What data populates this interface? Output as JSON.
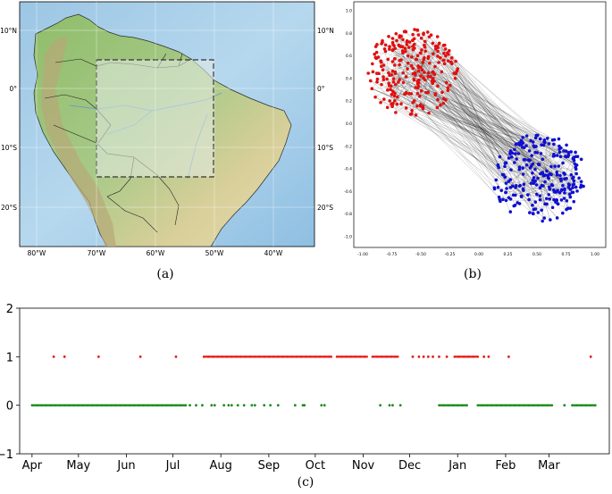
{
  "panels": {
    "a": {
      "caption": "(a)",
      "lat_labels": [
        "10°N",
        "0°",
        "10°S",
        "20°S"
      ],
      "lon_labels": [
        "80°W",
        "70°W",
        "60°W",
        "50°W",
        "40°W"
      ]
    },
    "b": {
      "caption": "(b)",
      "x_ticks": [
        "-1.00",
        "-0.75",
        "-0.50",
        "-0.25",
        "0.00",
        "0.25",
        "0.50",
        "0.75",
        "1.00"
      ],
      "y_ticks": [
        "1.0",
        "0.8",
        "0.6",
        "0.4",
        "0.2",
        "0.0",
        "-0.2",
        "-0.4",
        "-0.6",
        "-0.8",
        "-1.0"
      ],
      "cluster_colors": {
        "cluster_1": "#e01010",
        "cluster_2": "#1010d0"
      }
    },
    "c": {
      "caption": "(c)"
    }
  },
  "chart_data": {
    "type": "scatter",
    "y_ticks": [
      "2",
      "1",
      "0",
      "−1"
    ],
    "ylim": [
      -1,
      2
    ],
    "month_labels": [
      "Apr",
      "May",
      "Jun",
      "Jul",
      "Aug",
      "Sep",
      "Oct",
      "Nov",
      "Dec",
      "Jan",
      "Feb",
      "Mar"
    ],
    "xlim_days": [
      -8,
      373
    ],
    "series": [
      {
        "value": 1,
        "color": "#e8201c",
        "segments": [
          [
            111,
            194
          ],
          [
            197,
            217
          ],
          [
            220,
            237
          ],
          [
            273,
            288
          ]
        ],
        "isolated_days": [
          14,
          21,
          43,
          70,
          93,
          246,
          250,
          253,
          256,
          259,
          263,
          268,
          292,
          295,
          308,
          361
        ]
      },
      {
        "value": 0,
        "color": "#1c8a1c",
        "segments": [
          [
            0,
            100
          ],
          [
            263,
            281
          ],
          [
            288,
            336
          ],
          [
            349,
            364
          ]
        ],
        "isolated_days": [
          102,
          106,
          110,
          116,
          118,
          124,
          127,
          129,
          133,
          137,
          142,
          144,
          150,
          154,
          159,
          170,
          175,
          176,
          187,
          189,
          225,
          231,
          233,
          238,
          344
        ]
      }
    ]
  }
}
